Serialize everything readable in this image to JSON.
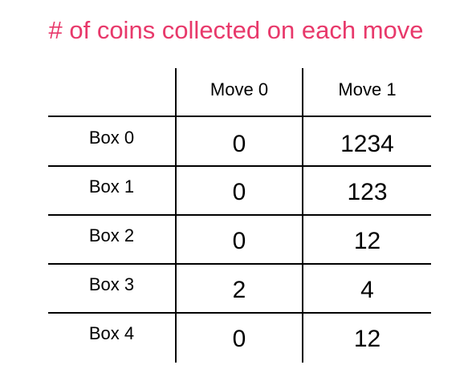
{
  "title": "# of coins collected on each move",
  "colors": {
    "title": "#e8396b",
    "text": "#000000",
    "lines": "#000000"
  },
  "table": {
    "columns": [
      "Move 0",
      "Move 1"
    ],
    "rows": [
      {
        "label": "Box 0",
        "values": [
          "0",
          "1234"
        ]
      },
      {
        "label": "Box 1",
        "values": [
          "0",
          "123"
        ]
      },
      {
        "label": "Box 2",
        "values": [
          "0",
          "12"
        ]
      },
      {
        "label": "Box 3",
        "values": [
          "2",
          "4"
        ]
      },
      {
        "label": "Box 4",
        "values": [
          "0",
          "12"
        ]
      }
    ]
  }
}
